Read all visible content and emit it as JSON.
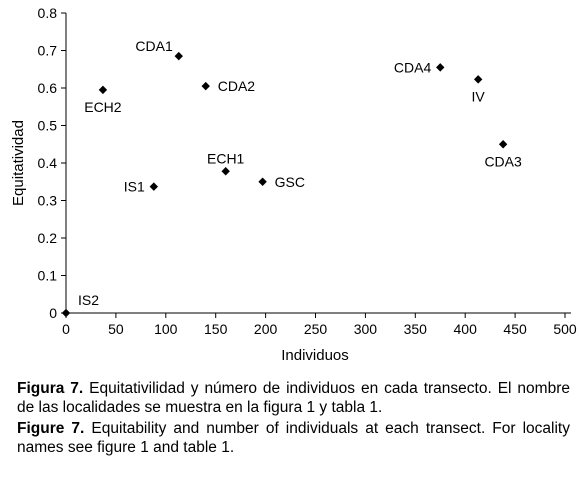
{
  "chart_data": {
    "type": "scatter",
    "xlabel": "Individuos",
    "ylabel": "Equitatividad",
    "xlim": [
      0,
      500
    ],
    "ylim": [
      0,
      0.8
    ],
    "xticks": [
      "0",
      "50",
      "100",
      "150",
      "200",
      "250",
      "300",
      "350",
      "400",
      "450",
      "500"
    ],
    "yticks": [
      "0",
      "0.1",
      "0.2",
      "0.3",
      "0.4",
      "0.5",
      "0.6",
      "0.7",
      "0.8"
    ],
    "grid": false,
    "marker": "diamond",
    "marker_color": "#000000",
    "points": [
      {
        "label": "CDA1",
        "x": 113,
        "y": 0.685,
        "label_pos": "left-above"
      },
      {
        "label": "CDA2",
        "x": 140,
        "y": 0.605,
        "label_pos": "right"
      },
      {
        "label": "ECH2",
        "x": 37,
        "y": 0.595,
        "label_pos": "below"
      },
      {
        "label": "CDA4",
        "x": 375,
        "y": 0.655,
        "label_pos": "left"
      },
      {
        "label": "IV",
        "x": 413,
        "y": 0.623,
        "label_pos": "below"
      },
      {
        "label": "CDA3",
        "x": 438,
        "y": 0.45,
        "label_pos": "below"
      },
      {
        "label": "ECH1",
        "x": 160,
        "y": 0.378,
        "label_pos": "above"
      },
      {
        "label": "GSC",
        "x": 197,
        "y": 0.35,
        "label_pos": "right"
      },
      {
        "label": "IS1",
        "x": 88,
        "y": 0.337,
        "label_pos": "left"
      },
      {
        "label": "IS2",
        "x": 0,
        "y": 0,
        "label_pos": "above-right"
      }
    ]
  },
  "caption": {
    "es_label": "Figura 7.",
    "es_text": " Equitativilidad y número de individuos en cada transecto. El nombre de las localidades se muestra en la figura 1 y tabla 1.",
    "en_label": "Figure 7.",
    "en_text": " Equitability and number of individuals at each transect. For locality names see figure 1 and table 1."
  }
}
